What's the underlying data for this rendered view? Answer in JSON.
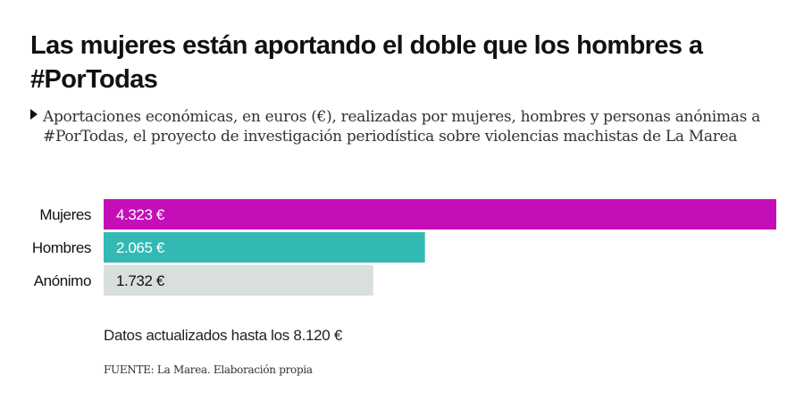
{
  "header": {
    "title": "Las mujeres están aportando el doble que los hombres a #PorTodas",
    "subtitle": "Aportaciones económicas, en euros (€), realizadas por mujeres, hombres y personas anónimas a #PorTodas, el proyecto de investigación periodística sobre violencias machistas de La Marea"
  },
  "footer": {
    "note": "Datos actualizados hasta los 8.120 €",
    "source": "FUENTE: La Marea. Elaboración propia"
  },
  "chart_data": {
    "type": "bar",
    "orientation": "horizontal",
    "categories": [
      "Mujeres",
      "Hombres",
      "Anónimo"
    ],
    "values": [
      4323,
      2065,
      1732
    ],
    "value_labels": [
      "4.323 €",
      "2.065 €",
      "1.732 €"
    ],
    "colors": [
      "#c40fb9",
      "#33b9b3",
      "#d9dfdd"
    ],
    "label_colors": [
      "#ffffff",
      "#ffffff",
      "#111111"
    ],
    "xlim": [
      0,
      4323
    ],
    "grid": false,
    "legend": "none"
  }
}
